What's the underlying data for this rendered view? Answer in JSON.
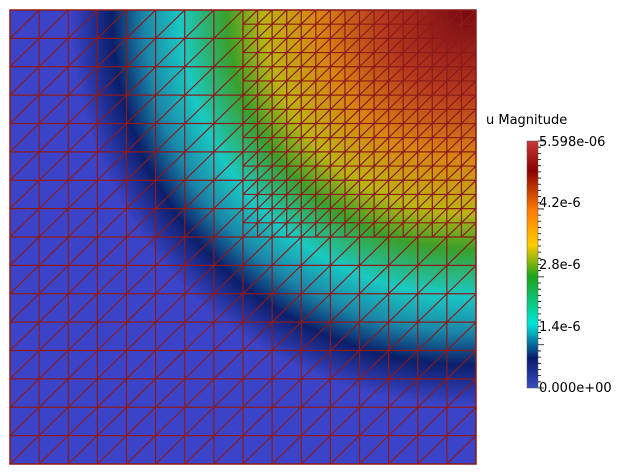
{
  "legend": {
    "title": "u Magnitude",
    "max_label": "5.598e-06",
    "min_label": "0.000e+00",
    "tick_labels": [
      "4.2e-6",
      "2.8e-6",
      "1.4e-6"
    ],
    "tick_values": [
      4.2e-06,
      2.8e-06,
      1.4e-06
    ],
    "range": [
      0,
      5.598e-06
    ],
    "colormap": [
      "#3b4cc0",
      "#0a1a6e",
      "#00e5d8",
      "#1aa31a",
      "#ffcc00",
      "#ff7a00",
      "#8b0000",
      "#c83a3a"
    ]
  },
  "mesh": {
    "edge_color": "#8b1a1a",
    "background_low": "#3b44c8"
  }
}
